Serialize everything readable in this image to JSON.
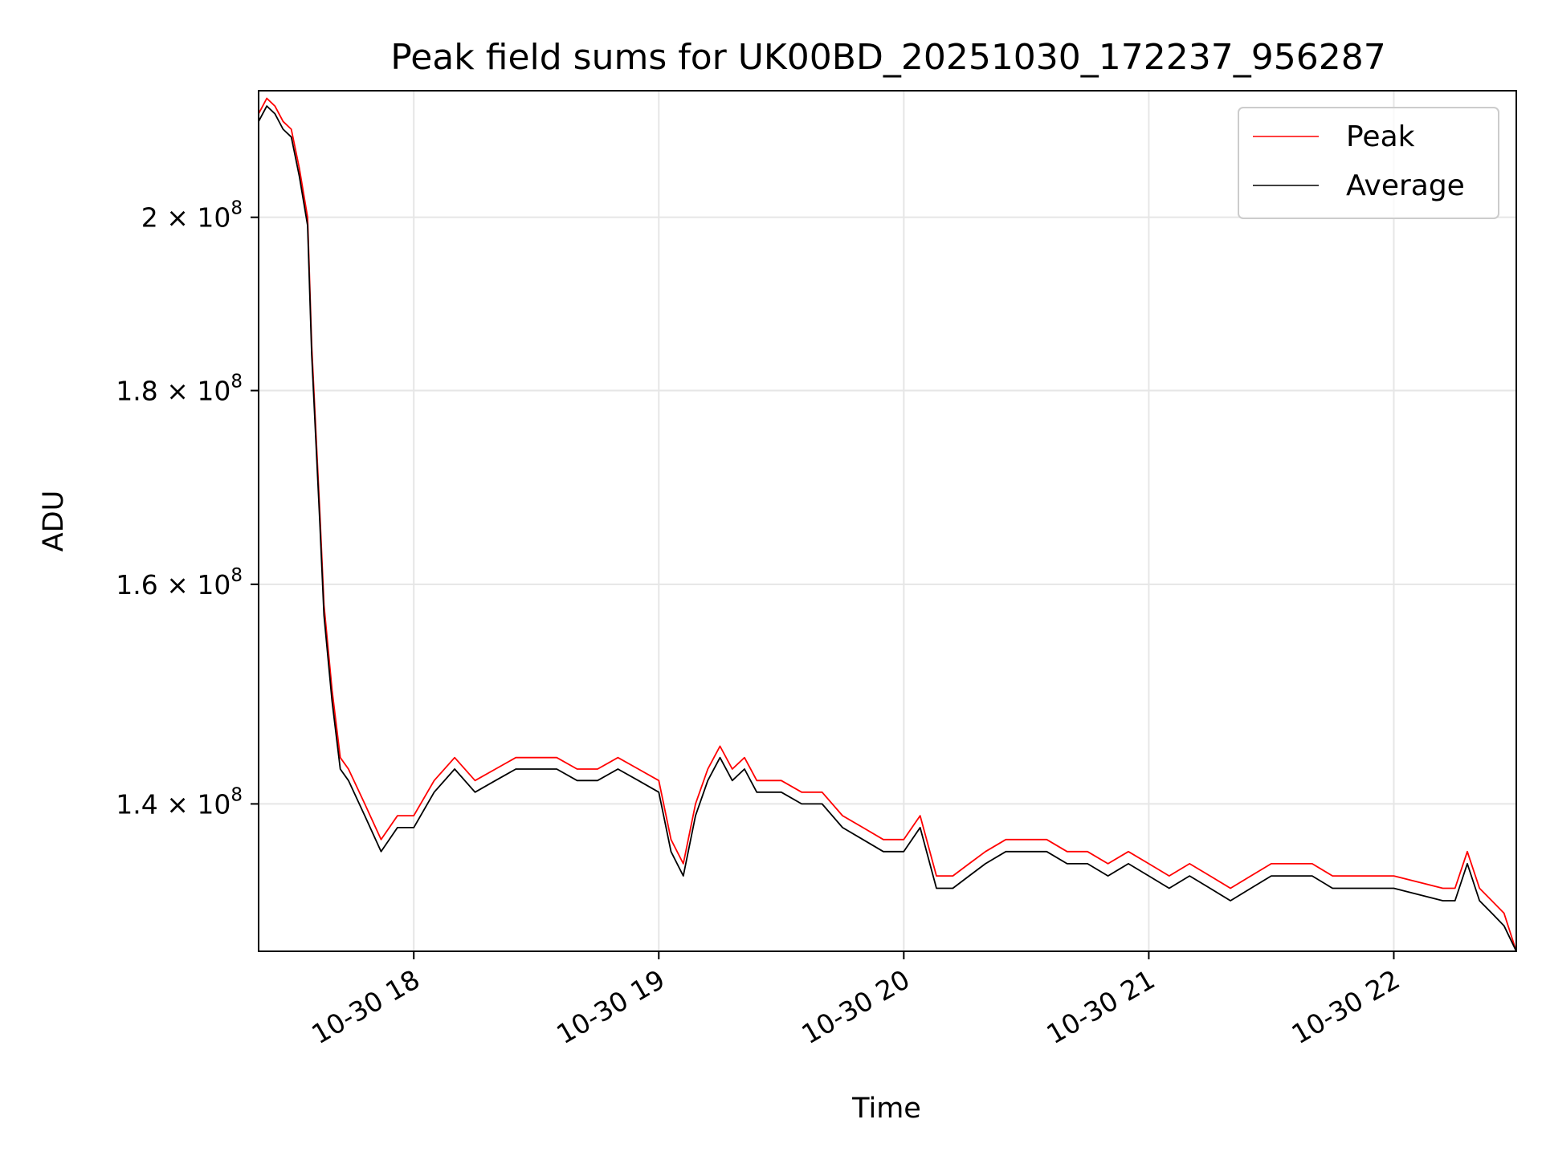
{
  "chart_data": {
    "type": "line",
    "title": "Peak field sums for UK00BD_20251030_172237_956287",
    "xlabel": "Time",
    "ylabel": "ADU",
    "y_scale": "log",
    "grid": true,
    "legend_position": "top-right",
    "xlim": [
      "2025-10-30 17:22",
      "2025-10-30 22:30"
    ],
    "ylim": [
      128000000,
      216000000
    ],
    "x_ticks": [
      {
        "value": "2025-10-30 18:00",
        "label": "10-30 18"
      },
      {
        "value": "2025-10-30 19:00",
        "label": "10-30 19"
      },
      {
        "value": "2025-10-30 20:00",
        "label": "10-30 20"
      },
      {
        "value": "2025-10-30 21:00",
        "label": "10-30 21"
      },
      {
        "value": "2025-10-30 22:00",
        "label": "10-30 22"
      }
    ],
    "y_ticks": [
      {
        "value": 140000000,
        "mantissa": "1.4",
        "base": "10",
        "exp": "8"
      },
      {
        "value": 160000000,
        "mantissa": "1.6",
        "base": "10",
        "exp": "8"
      },
      {
        "value": 180000000,
        "mantissa": "1.8",
        "base": "10",
        "exp": "8"
      },
      {
        "value": 200000000,
        "mantissa": "2",
        "base": "10",
        "exp": "8"
      }
    ],
    "series": [
      {
        "name": "Peak",
        "color": "#ff0000",
        "x": [
          "2025-10-30 17:22",
          "2025-10-30 17:24",
          "2025-10-30 17:26",
          "2025-10-30 17:28",
          "2025-10-30 17:30",
          "2025-10-30 17:32",
          "2025-10-30 17:34",
          "2025-10-30 17:35",
          "2025-10-30 17:37",
          "2025-10-30 17:38",
          "2025-10-30 17:40",
          "2025-10-30 17:42",
          "2025-10-30 17:44",
          "2025-10-30 17:48",
          "2025-10-30 17:52",
          "2025-10-30 17:56",
          "2025-10-30 18:00",
          "2025-10-30 18:05",
          "2025-10-30 18:10",
          "2025-10-30 18:15",
          "2025-10-30 18:20",
          "2025-10-30 18:25",
          "2025-10-30 18:30",
          "2025-10-30 18:35",
          "2025-10-30 18:40",
          "2025-10-30 18:45",
          "2025-10-30 18:50",
          "2025-10-30 18:55",
          "2025-10-30 19:00",
          "2025-10-30 19:03",
          "2025-10-30 19:06",
          "2025-10-30 19:09",
          "2025-10-30 19:12",
          "2025-10-30 19:15",
          "2025-10-30 19:18",
          "2025-10-30 19:21",
          "2025-10-30 19:24",
          "2025-10-30 19:27",
          "2025-10-30 19:30",
          "2025-10-30 19:35",
          "2025-10-30 19:40",
          "2025-10-30 19:45",
          "2025-10-30 19:50",
          "2025-10-30 19:55",
          "2025-10-30 20:00",
          "2025-10-30 20:04",
          "2025-10-30 20:08",
          "2025-10-30 20:12",
          "2025-10-30 20:16",
          "2025-10-30 20:20",
          "2025-10-30 20:25",
          "2025-10-30 20:30",
          "2025-10-30 20:35",
          "2025-10-30 20:40",
          "2025-10-30 20:45",
          "2025-10-30 20:50",
          "2025-10-30 20:55",
          "2025-10-30 21:00",
          "2025-10-30 21:05",
          "2025-10-30 21:10",
          "2025-10-30 21:15",
          "2025-10-30 21:20",
          "2025-10-30 21:25",
          "2025-10-30 21:30",
          "2025-10-30 21:35",
          "2025-10-30 21:40",
          "2025-10-30 21:45",
          "2025-10-30 21:50",
          "2025-10-30 21:55",
          "2025-10-30 22:00",
          "2025-10-30 22:12",
          "2025-10-30 22:15",
          "2025-10-30 22:18",
          "2025-10-30 22:21",
          "2025-10-30 22:24",
          "2025-10-30 22:27",
          "2025-10-30 22:30"
        ],
        "y": [
          213000000,
          215000000,
          214000000,
          212000000,
          211000000,
          206000000,
          200000000,
          185000000,
          167000000,
          158000000,
          150000000,
          144000000,
          143000000,
          140000000,
          137000000,
          139000000,
          139000000,
          142000000,
          144000000,
          142000000,
          143000000,
          144000000,
          144000000,
          144000000,
          143000000,
          143000000,
          144000000,
          143000000,
          142000000,
          137000000,
          135000000,
          140000000,
          143000000,
          145000000,
          143000000,
          144000000,
          142000000,
          142000000,
          142000000,
          141000000,
          141000000,
          139000000,
          138000000,
          137000000,
          137000000,
          139000000,
          134000000,
          134000000,
          135000000,
          136000000,
          137000000,
          137000000,
          137000000,
          136000000,
          136000000,
          135000000,
          136000000,
          135000000,
          134000000,
          135000000,
          134000000,
          133000000,
          134000000,
          135000000,
          135000000,
          135000000,
          134000000,
          134000000,
          134000000,
          134000000,
          133000000,
          133000000,
          136000000,
          133000000,
          132000000,
          131000000,
          128000000
        ]
      },
      {
        "name": "Average",
        "color": "#000000",
        "x": [
          "2025-10-30 17:22",
          "2025-10-30 17:24",
          "2025-10-30 17:26",
          "2025-10-30 17:28",
          "2025-10-30 17:30",
          "2025-10-30 17:32",
          "2025-10-30 17:34",
          "2025-10-30 17:35",
          "2025-10-30 17:37",
          "2025-10-30 17:38",
          "2025-10-30 17:40",
          "2025-10-30 17:42",
          "2025-10-30 17:44",
          "2025-10-30 17:48",
          "2025-10-30 17:52",
          "2025-10-30 17:56",
          "2025-10-30 18:00",
          "2025-10-30 18:05",
          "2025-10-30 18:10",
          "2025-10-30 18:15",
          "2025-10-30 18:20",
          "2025-10-30 18:25",
          "2025-10-30 18:30",
          "2025-10-30 18:35",
          "2025-10-30 18:40",
          "2025-10-30 18:45",
          "2025-10-30 18:50",
          "2025-10-30 18:55",
          "2025-10-30 19:00",
          "2025-10-30 19:03",
          "2025-10-30 19:06",
          "2025-10-30 19:09",
          "2025-10-30 19:12",
          "2025-10-30 19:15",
          "2025-10-30 19:18",
          "2025-10-30 19:21",
          "2025-10-30 19:24",
          "2025-10-30 19:27",
          "2025-10-30 19:30",
          "2025-10-30 19:35",
          "2025-10-30 19:40",
          "2025-10-30 19:45",
          "2025-10-30 19:50",
          "2025-10-30 19:55",
          "2025-10-30 20:00",
          "2025-10-30 20:04",
          "2025-10-30 20:08",
          "2025-10-30 20:12",
          "2025-10-30 20:16",
          "2025-10-30 20:20",
          "2025-10-30 20:25",
          "2025-10-30 20:30",
          "2025-10-30 20:35",
          "2025-10-30 20:40",
          "2025-10-30 20:45",
          "2025-10-30 20:50",
          "2025-10-30 20:55",
          "2025-10-30 21:00",
          "2025-10-30 21:05",
          "2025-10-30 21:10",
          "2025-10-30 21:15",
          "2025-10-30 21:20",
          "2025-10-30 21:25",
          "2025-10-30 21:30",
          "2025-10-30 21:35",
          "2025-10-30 21:40",
          "2025-10-30 21:45",
          "2025-10-30 21:50",
          "2025-10-30 21:55",
          "2025-10-30 22:00",
          "2025-10-30 22:12",
          "2025-10-30 22:15",
          "2025-10-30 22:18",
          "2025-10-30 22:21",
          "2025-10-30 22:24",
          "2025-10-30 22:27",
          "2025-10-30 22:30"
        ],
        "y": [
          212000000,
          214000000,
          213000000,
          211000000,
          210000000,
          205000000,
          199000000,
          184000000,
          166000000,
          157000000,
          149000000,
          143000000,
          142000000,
          139000000,
          136000000,
          138000000,
          138000000,
          141000000,
          143000000,
          141000000,
          142000000,
          143000000,
          143000000,
          143000000,
          142000000,
          142000000,
          143000000,
          142000000,
          141000000,
          136000000,
          134000000,
          139000000,
          142000000,
          144000000,
          142000000,
          143000000,
          141000000,
          141000000,
          141000000,
          140000000,
          140000000,
          138000000,
          137000000,
          136000000,
          136000000,
          138000000,
          133000000,
          133000000,
          134000000,
          135000000,
          136000000,
          136000000,
          136000000,
          135000000,
          135000000,
          134000000,
          135000000,
          134000000,
          133000000,
          134000000,
          133000000,
          132000000,
          133000000,
          134000000,
          134000000,
          134000000,
          133000000,
          133000000,
          133000000,
          133000000,
          132000000,
          132000000,
          135000000,
          132000000,
          131000000,
          130000000,
          128000000
        ]
      }
    ]
  }
}
